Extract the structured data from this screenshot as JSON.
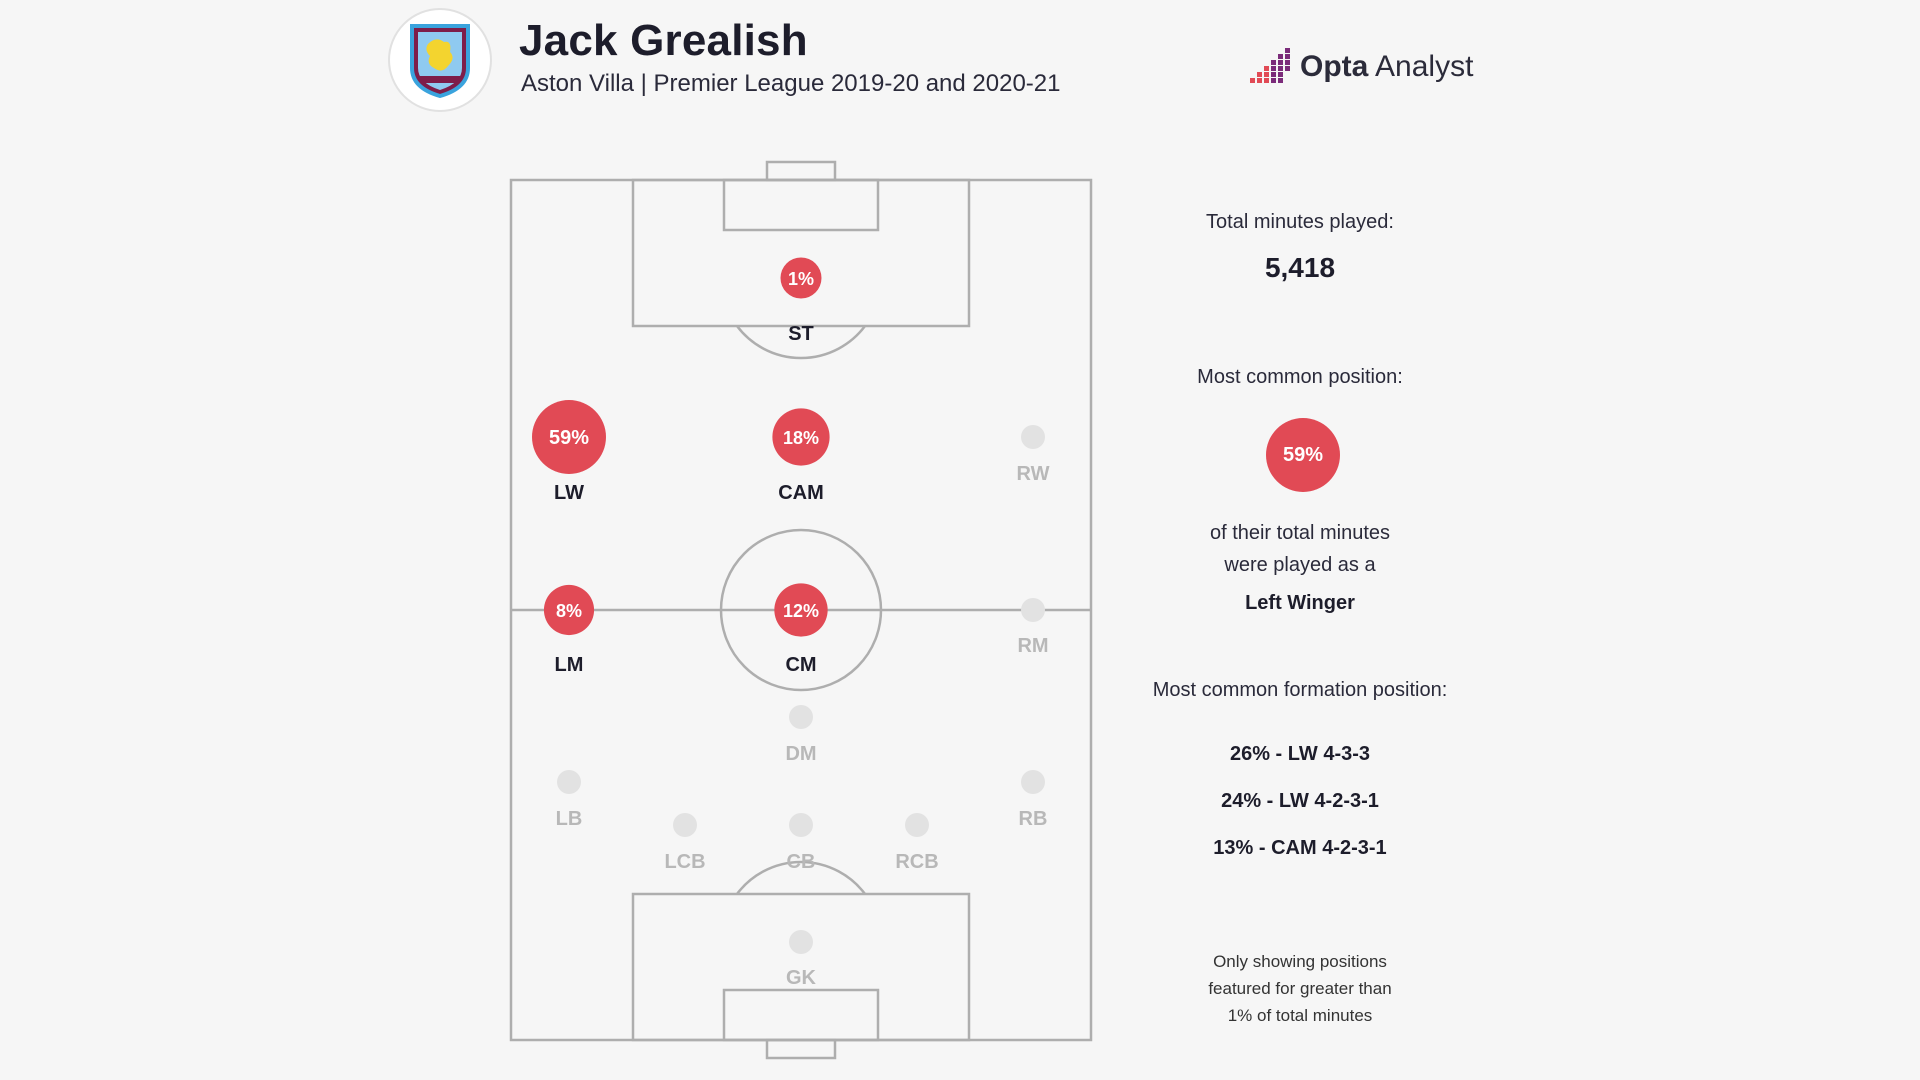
{
  "header": {
    "title": "Jack Grealish",
    "subtitle": "Aston Villa | Premier League 2019-20 and 2020-21",
    "brand_bold": "Opta",
    "brand_light": "Analyst",
    "crest_text": "ASTON VILLA"
  },
  "colors": {
    "active": "#e14a55",
    "inactive": "#e2e2e2",
    "label_active": "#1d1d2b",
    "label_inactive": "#b8b8b8",
    "pitch_line": "#aeaeae"
  },
  "positions": [
    {
      "code": "ST",
      "pct": "1%",
      "active": true
    },
    {
      "code": "LW",
      "pct": "59%",
      "active": true
    },
    {
      "code": "CAM",
      "pct": "18%",
      "active": true
    },
    {
      "code": "RW",
      "pct": "",
      "active": false
    },
    {
      "code": "LM",
      "pct": "8%",
      "active": true
    },
    {
      "code": "CM",
      "pct": "12%",
      "active": true
    },
    {
      "code": "RM",
      "pct": "",
      "active": false
    },
    {
      "code": "DM",
      "pct": "",
      "active": false
    },
    {
      "code": "LB",
      "pct": "",
      "active": false
    },
    {
      "code": "RB",
      "pct": "",
      "active": false
    },
    {
      "code": "LCB",
      "pct": "",
      "active": false
    },
    {
      "code": "CB",
      "pct": "",
      "active": false
    },
    {
      "code": "RCB",
      "pct": "",
      "active": false
    },
    {
      "code": "GK",
      "pct": "",
      "active": false
    }
  ],
  "stats": {
    "total_label": "Total minutes played:",
    "total_value": "5,418",
    "common_label": "Most common position:",
    "common_pct": "59%",
    "common_desc_1": "of their total minutes",
    "common_desc_2": "were played as a",
    "common_role": "Left Winger",
    "formation_label": "Most common formation position:",
    "formations": [
      "26% - LW 4-3-3",
      "24% - LW 4-2-3-1",
      "13% - CAM 4-2-3-1"
    ],
    "note_1": "Only showing positions",
    "note_2": "featured for greater than",
    "note_3": "1% of total minutes"
  }
}
